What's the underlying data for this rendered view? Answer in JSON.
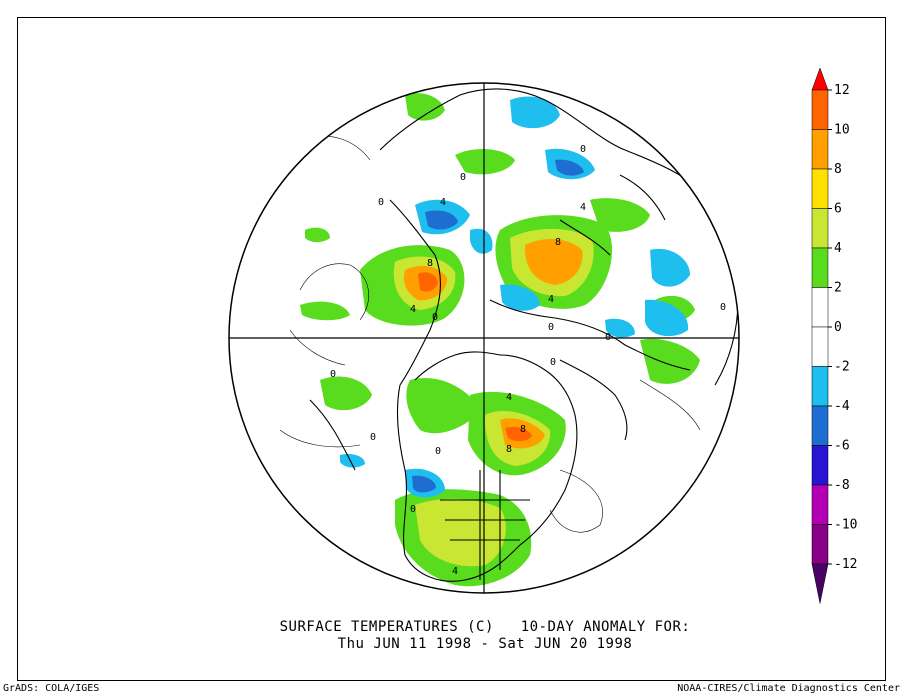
{
  "title": {
    "line1": "SURFACE TEMPERATURES (C)   10-DAY ANOMALY FOR:",
    "line2": "Thu JUN 11 1998 - Sat JUN 20 1998"
  },
  "footer": {
    "left": "GrADS: COLA/IGES",
    "right": "NOAA-CIRES/Climate Diagnostics Center"
  },
  "colorbar": {
    "labels": [
      "12",
      "10",
      "8",
      "6",
      "4",
      "2",
      "0",
      "-2",
      "-4",
      "-6",
      "-8",
      "-10",
      "-12"
    ],
    "colors": [
      "#ff0000",
      "#ff6400",
      "#ffa000",
      "#ffe000",
      "#c8e632",
      "#5adc1e",
      "#ffffff",
      "#ffffff",
      "#1ebeee",
      "#1e6ed2",
      "#2814d2",
      "#b400b4",
      "#880088",
      "#4b0066"
    ]
  },
  "map": {
    "projection": "north polar stereographic",
    "contour_labels": [
      "0",
      "0",
      "0",
      "0",
      "0",
      "0",
      "0",
      "0",
      "0",
      "0",
      "0",
      "0",
      "4",
      "4",
      "4",
      "4",
      "4",
      "4",
      "8",
      "8",
      "8",
      "8"
    ]
  }
}
